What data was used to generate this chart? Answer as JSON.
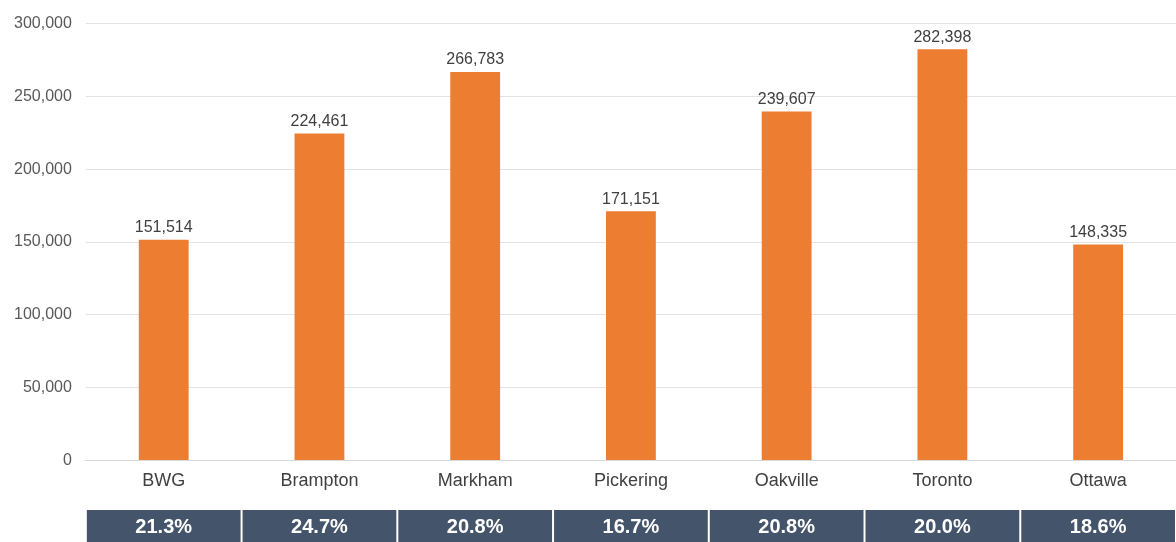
{
  "chart_data": {
    "type": "bar",
    "categories": [
      "BWG",
      "Brampton",
      "Markham",
      "Pickering",
      "Oakville",
      "Toronto",
      "Ottawa"
    ],
    "values": [
      151514,
      224461,
      266783,
      171151,
      239607,
      282398,
      148335
    ],
    "value_labels": [
      "151,514",
      "224,461",
      "266,783",
      "171,151",
      "239,607",
      "282,398",
      "148,335"
    ],
    "color": "#ed7d31",
    "ylim": [
      0,
      300000
    ],
    "yticks": [
      0,
      {
        "value": 50000,
        "label": "50,000"
      },
      {
        "value": 100000,
        "label": "100,000"
      },
      {
        "value": 150000,
        "label": "150,000"
      },
      {
        "value": 200000,
        "label": "200,000"
      },
      {
        "value": 250000,
        "label": "250,000"
      },
      {
        "value": 300000,
        "label": "300,000"
      }
    ],
    "grid": "y",
    "legend": false,
    "annotations": [
      "21.3%",
      "24.7%",
      "20.8%",
      "16.7%",
      "20.8%",
      "20.0%",
      "18.6%"
    ]
  }
}
